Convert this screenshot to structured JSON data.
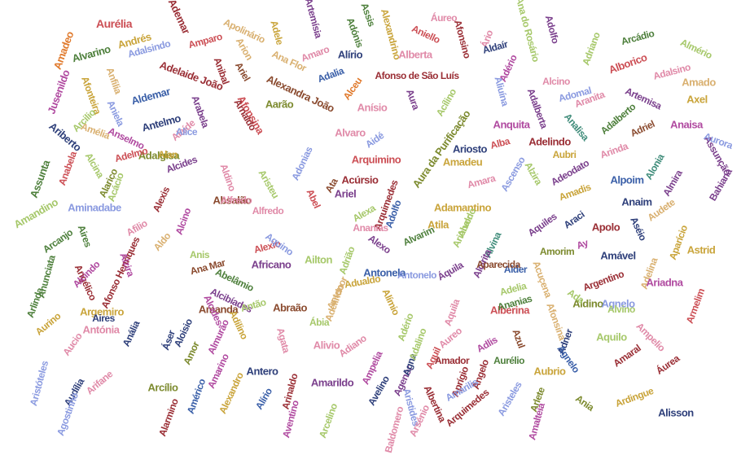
{
  "palette": {
    "red": "#cc4f55",
    "orange": "#e07a2d",
    "gold": "#c9a43a",
    "olive": "#7c8a2e",
    "green": "#4d7f3b",
    "teal": "#3f8c7a",
    "blue": "#3a5fa8",
    "lightblue": "#8a9ae0",
    "purple": "#7a3f8c",
    "magenta": "#b04aa0",
    "pink": "#e08aa8",
    "lightgreen": "#a6c86a",
    "brown": "#8a4a2e",
    "tan": "#d9b070",
    "darkred": "#9a2e35",
    "navy": "#2e3f7a"
  },
  "words": [
    {
      "text": "Aurélia",
      "color": "red"
    },
    {
      "text": "Ademar",
      "color": "darkred"
    },
    {
      "text": "Apolinário",
      "color": "tan"
    },
    {
      "text": "Adele",
      "color": "gold"
    },
    {
      "text": "Artemísia",
      "color": "purple"
    },
    {
      "text": "Assis",
      "color": "green"
    },
    {
      "text": "Alexandrino",
      "color": "gold"
    },
    {
      "text": "Áureo",
      "color": "pink"
    },
    {
      "text": "Ana do Rosário",
      "color": "lightgreen"
    },
    {
      "text": "Adolfo",
      "color": "purple"
    },
    {
      "text": "Adriano",
      "color": "lightgreen"
    },
    {
      "text": "Arcádio",
      "color": "green"
    },
    {
      "text": "Almério",
      "color": "lightgreen"
    },
    {
      "text": "Amadeo",
      "color": "orange"
    },
    {
      "text": "Alvarino",
      "color": "green"
    },
    {
      "text": "Andrés",
      "color": "gold"
    },
    {
      "text": "Adalsindo",
      "color": "lightblue"
    },
    {
      "text": "Amparo",
      "color": "red"
    },
    {
      "text": "Arion",
      "color": "tan"
    },
    {
      "text": "Adónis",
      "color": "green"
    },
    {
      "text": "Aniello",
      "color": "red"
    },
    {
      "text": "Afonsino",
      "color": "darkred"
    },
    {
      "text": "Ário",
      "color": "pink"
    },
    {
      "text": "Aldaír",
      "color": "navy"
    },
    {
      "text": "Adério",
      "color": "magenta"
    },
    {
      "text": "Alborico",
      "color": "red"
    },
    {
      "text": "Adalsino",
      "color": "pink"
    },
    {
      "text": "Amado",
      "color": "tan"
    },
    {
      "text": "Axel",
      "color": "gold"
    },
    {
      "text": "Jusenildo",
      "color": "magenta"
    },
    {
      "text": "Adelaide João",
      "color": "darkred"
    },
    {
      "text": "Ariel",
      "color": "brown"
    },
    {
      "text": "Ana Flor",
      "color": "tan"
    },
    {
      "text": "Amaro",
      "color": "pink"
    },
    {
      "text": "Alírio",
      "color": "navy"
    },
    {
      "text": "Alberta",
      "color": "pink"
    },
    {
      "text": "Anibal",
      "color": "darkred"
    },
    {
      "text": "Adalia",
      "color": "blue"
    },
    {
      "text": "Afonso de São Luís",
      "color": "darkred"
    },
    {
      "text": "Alexandra João",
      "color": "brown"
    },
    {
      "text": "Alceu",
      "color": "orange"
    },
    {
      "text": "Alcino",
      "color": "pink"
    },
    {
      "text": "Adomal",
      "color": "lightblue"
    },
    {
      "text": "Artemisa",
      "color": "purple"
    },
    {
      "text": "Afonteira",
      "color": "gold"
    },
    {
      "text": "Anfilia",
      "color": "tan"
    },
    {
      "text": "Aldemar",
      "color": "blue"
    },
    {
      "text": "Aniela",
      "color": "lightblue"
    },
    {
      "text": "Arcilio",
      "color": "lightgreen"
    },
    {
      "text": "Arabela",
      "color": "purple"
    },
    {
      "text": "Aarão",
      "color": "olive"
    },
    {
      "text": "Anísio",
      "color": "pink"
    },
    {
      "text": "Aura",
      "color": "purple"
    },
    {
      "text": "Acílino",
      "color": "lightgreen"
    },
    {
      "text": "Ariberto",
      "color": "navy"
    },
    {
      "text": "Amélia",
      "color": "tan"
    },
    {
      "text": "Antelmo",
      "color": "navy"
    },
    {
      "text": "Alaíde",
      "color": "pink"
    },
    {
      "text": "Afonsina",
      "color": "red"
    },
    {
      "text": "Adalgisa",
      "color": "olive"
    },
    {
      "text": "Alice",
      "color": "lightblue"
    },
    {
      "text": "Anselmo",
      "color": "magenta"
    },
    {
      "text": "Alan",
      "color": "gold"
    },
    {
      "text": "Alcina",
      "color": "lightgreen"
    },
    {
      "text": "Arnaldo",
      "color": "darkred"
    },
    {
      "text": "Alfredo",
      "color": "pink"
    },
    {
      "text": "Aura da Purificação",
      "color": "olive"
    },
    {
      "text": "Ariosto",
      "color": "navy"
    },
    {
      "text": "Alba",
      "color": "red"
    },
    {
      "text": "Adelindo",
      "color": "darkred"
    },
    {
      "text": "Aubri",
      "color": "gold"
    },
    {
      "text": "Arinda",
      "color": "pink"
    },
    {
      "text": "Adalberto",
      "color": "green"
    },
    {
      "text": "Adriel",
      "color": "brown"
    },
    {
      "text": "Anaisa",
      "color": "magenta"
    },
    {
      "text": "Assunção",
      "color": "purple"
    },
    {
      "text": "Aurora",
      "color": "lightblue"
    },
    {
      "text": "Anquita",
      "color": "magenta"
    },
    {
      "text": "Analisa",
      "color": "teal"
    },
    {
      "text": "Aliuína",
      "color": "lightblue"
    },
    {
      "text": "Aranita",
      "color": "pink"
    },
    {
      "text": "Adalberta",
      "color": "purple"
    },
    {
      "text": "Assunta",
      "color": "green"
    },
    {
      "text": "Anabela",
      "color": "red"
    },
    {
      "text": "Alarico",
      "color": "olive"
    },
    {
      "text": "Adelmo",
      "color": "red"
    },
    {
      "text": "Alcides",
      "color": "purple"
    },
    {
      "text": "Aldino",
      "color": "pink"
    },
    {
      "text": "Aristeu",
      "color": "lightgreen"
    },
    {
      "text": "Alvaro",
      "color": "pink"
    },
    {
      "text": "Aidé",
      "color": "lightblue"
    },
    {
      "text": "Adonias",
      "color": "lightblue"
    },
    {
      "text": "Arquimino",
      "color": "red"
    },
    {
      "text": "Amadeu",
      "color": "gold"
    },
    {
      "text": "Alzira",
      "color": "lightgreen"
    },
    {
      "text": "Adeodato",
      "color": "purple"
    },
    {
      "text": "Alpoim",
      "color": "blue"
    },
    {
      "text": "Alonia",
      "color": "teal"
    },
    {
      "text": "Almira",
      "color": "purple"
    },
    {
      "text": "Bahiana",
      "color": "purple"
    },
    {
      "text": "Ata",
      "color": "brown"
    },
    {
      "text": "Arquimedes",
      "color": "darkred"
    },
    {
      "text": "Acúrsio",
      "color": "darkred"
    },
    {
      "text": "Ariel",
      "color": "purple"
    },
    {
      "text": "Adamantino",
      "color": "gold"
    },
    {
      "text": "Amara",
      "color": "pink"
    },
    {
      "text": "Ascenso",
      "color": "lightblue"
    },
    {
      "text": "Amadis",
      "color": "gold"
    },
    {
      "text": "Anaim",
      "color": "navy"
    },
    {
      "text": "Audete",
      "color": "tan"
    },
    {
      "text": "Abel",
      "color": "red"
    },
    {
      "text": "Aminadabe",
      "color": "lightblue"
    },
    {
      "text": "Alexis",
      "color": "darkred"
    },
    {
      "text": "Aristides",
      "color": "lightblue"
    },
    {
      "text": "Absalão",
      "color": "brown"
    },
    {
      "text": "Alexa",
      "color": "lightgreen"
    },
    {
      "text": "Adolfo",
      "color": "blue"
    },
    {
      "text": "Atila",
      "color": "gold"
    },
    {
      "text": "Alvor",
      "color": "lightgreen"
    },
    {
      "text": "Agenor",
      "color": "purple"
    },
    {
      "text": "Aquiles",
      "color": "purple"
    },
    {
      "text": "Araci",
      "color": "navy"
    },
    {
      "text": "Apolo",
      "color": "darkred"
    },
    {
      "text": "Aséio",
      "color": "navy"
    },
    {
      "text": "Aparício",
      "color": "gold"
    },
    {
      "text": "Amandino",
      "color": "lightgreen"
    },
    {
      "text": "Acácio",
      "color": "lightgreen"
    },
    {
      "text": "Aires",
      "color": "green"
    },
    {
      "text": "Afilio",
      "color": "pink"
    },
    {
      "text": "Aldo",
      "color": "tan"
    },
    {
      "text": "Alcino",
      "color": "magenta"
    },
    {
      "text": "Angélico",
      "color": "darkred"
    },
    {
      "text": "Alfredo",
      "color": "pink"
    },
    {
      "text": "Afonso Henriques",
      "color": "darkred"
    },
    {
      "text": "Alvarim",
      "color": "green"
    },
    {
      "text": "Ariobaldo",
      "color": "lightgreen"
    },
    {
      "text": "Alvina",
      "color": "teal"
    },
    {
      "text": "Alcirita",
      "color": "purple"
    },
    {
      "text": "Alder",
      "color": "blue"
    },
    {
      "text": "Amorim",
      "color": "olive"
    },
    {
      "text": "Ay",
      "color": "magenta"
    },
    {
      "text": "Amável",
      "color": "navy"
    },
    {
      "text": "Argentino",
      "color": "darkred"
    },
    {
      "text": "Adelina",
      "color": "tan"
    },
    {
      "text": "Astrid",
      "color": "gold"
    },
    {
      "text": "Arcanjo",
      "color": "green"
    },
    {
      "text": "Anunciata",
      "color": "green"
    },
    {
      "text": "Alcindo",
      "color": "magenta"
    },
    {
      "text": "Alzira",
      "color": "magenta"
    },
    {
      "text": "Anis",
      "color": "lightgreen"
    },
    {
      "text": "Alexio",
      "color": "red"
    },
    {
      "text": "Aquino",
      "color": "lightblue"
    },
    {
      "text": "Alexo",
      "color": "purple"
    },
    {
      "text": "Antonela",
      "color": "blue"
    },
    {
      "text": "Antonelo",
      "color": "lightblue"
    },
    {
      "text": "Áquila",
      "color": "purple"
    },
    {
      "text": "Aparecida",
      "color": "brown"
    },
    {
      "text": "Adelia",
      "color": "lightgreen"
    },
    {
      "text": "Acuçena",
      "color": "tan"
    },
    {
      "text": "Aldino",
      "color": "olive"
    },
    {
      "text": "Ariadna",
      "color": "magenta"
    },
    {
      "text": "Agnelo",
      "color": "lightblue"
    },
    {
      "text": "Ana Mar",
      "color": "brown"
    },
    {
      "text": "Abelâmio",
      "color": "green"
    },
    {
      "text": "Africano",
      "color": "purple"
    },
    {
      "text": "Ailton",
      "color": "lightgreen"
    },
    {
      "text": "Adrião",
      "color": "lightgreen"
    },
    {
      "text": "Adualdo",
      "color": "gold"
    },
    {
      "text": "Ada",
      "color": "lightgreen"
    },
    {
      "text": "Alvino",
      "color": "lightgreen"
    },
    {
      "text": "Armelim",
      "color": "red"
    },
    {
      "text": "Arlinda",
      "color": "green"
    },
    {
      "text": "Alcibíades",
      "color": "purple"
    },
    {
      "text": "Abraão",
      "color": "brown"
    },
    {
      "text": "Adelindo",
      "color": "tan"
    },
    {
      "text": "Antenor",
      "color": "tan"
    },
    {
      "text": "Alímio",
      "color": "gold"
    },
    {
      "text": "Alberina",
      "color": "red"
    },
    {
      "text": "Ananias",
      "color": "green"
    },
    {
      "text": "Afonsina",
      "color": "tan"
    },
    {
      "text": "Aquila",
      "color": "pink"
    },
    {
      "text": "Aurino",
      "color": "gold"
    },
    {
      "text": "Argemiro",
      "color": "gold"
    },
    {
      "text": "Amanda",
      "color": "brown"
    },
    {
      "text": "Alcides",
      "color": "magenta"
    },
    {
      "text": "Antão",
      "color": "lightgreen"
    },
    {
      "text": "Ábia",
      "color": "lightgreen"
    },
    {
      "text": "Adério",
      "color": "lightgreen"
    },
    {
      "text": "Agna",
      "color": "navy"
    },
    {
      "text": "Azul",
      "color": "brown"
    },
    {
      "text": "Aquilo",
      "color": "lightgreen"
    },
    {
      "text": "Ampelio",
      "color": "pink"
    },
    {
      "text": "Antónia",
      "color": "pink"
    },
    {
      "text": "Anália",
      "color": "navy"
    },
    {
      "text": "Aloisio",
      "color": "navy"
    },
    {
      "text": "Áser",
      "color": "navy"
    },
    {
      "text": "Amor",
      "color": "olive"
    },
    {
      "text": "Almurão",
      "color": "magenta"
    },
    {
      "text": "Adilino",
      "color": "gold"
    },
    {
      "text": "Adalino",
      "color": "lightgreen"
    },
    {
      "text": "Aureo",
      "color": "pink"
    },
    {
      "text": "Adlis",
      "color": "magenta"
    },
    {
      "text": "Agata",
      "color": "pink"
    },
    {
      "text": "Alivio",
      "color": "pink"
    },
    {
      "text": "Adiano",
      "color": "pink"
    },
    {
      "text": "Ampelia",
      "color": "magenta"
    },
    {
      "text": "Aquil",
      "color": "red"
    },
    {
      "text": "Amador",
      "color": "darkred"
    },
    {
      "text": "Ângelo",
      "color": "darkred"
    },
    {
      "text": "Adner",
      "color": "navy"
    },
    {
      "text": "Aurélio",
      "color": "green"
    },
    {
      "text": "Aubrio",
      "color": "gold"
    },
    {
      "text": "Amaral",
      "color": "darkred"
    },
    {
      "text": "Áurea",
      "color": "darkred"
    },
    {
      "text": "Agnelo",
      "color": "blue"
    },
    {
      "text": "Aires",
      "color": "navy"
    },
    {
      "text": "Aucio",
      "color": "pink"
    },
    {
      "text": "Amarino",
      "color": "magenta"
    },
    {
      "text": "Antero",
      "color": "navy"
    },
    {
      "text": "Amarildo",
      "color": "purple"
    },
    {
      "text": "Aprígio",
      "color": "darkred"
    },
    {
      "text": "Alisson",
      "color": "navy"
    },
    {
      "text": "Aristóteles",
      "color": "lightblue"
    },
    {
      "text": "Audília",
      "color": "navy"
    },
    {
      "text": "Arifane",
      "color": "pink"
    },
    {
      "text": "Arcílio",
      "color": "olive"
    },
    {
      "text": "Alexandro",
      "color": "gold"
    },
    {
      "text": "Alírio",
      "color": "blue"
    },
    {
      "text": "Arinaldo",
      "color": "darkred"
    },
    {
      "text": "Américo",
      "color": "blue"
    },
    {
      "text": "Avelino",
      "color": "navy"
    },
    {
      "text": "Amarilis",
      "color": "lightblue"
    },
    {
      "text": "Arsénio",
      "color": "pink"
    },
    {
      "text": "Arlete",
      "color": "olive"
    },
    {
      "text": "Ania",
      "color": "olive"
    },
    {
      "text": "Ardingue",
      "color": "gold"
    },
    {
      "text": "Agostinho",
      "color": "lightblue"
    },
    {
      "text": "Alarmino",
      "color": "darkred"
    },
    {
      "text": "Aventino",
      "color": "magenta"
    },
    {
      "text": "Baldomero",
      "color": "pink"
    },
    {
      "text": "Arquimedes",
      "color": "darkred"
    },
    {
      "text": "Aristeles",
      "color": "lightblue"
    },
    {
      "text": "Arcelino",
      "color": "lightgreen"
    },
    {
      "text": "Albertina",
      "color": "darkred"
    },
    {
      "text": "Amalteia",
      "color": "magenta"
    },
    {
      "text": "Ananias",
      "color": "pink"
    }
  ]
}
